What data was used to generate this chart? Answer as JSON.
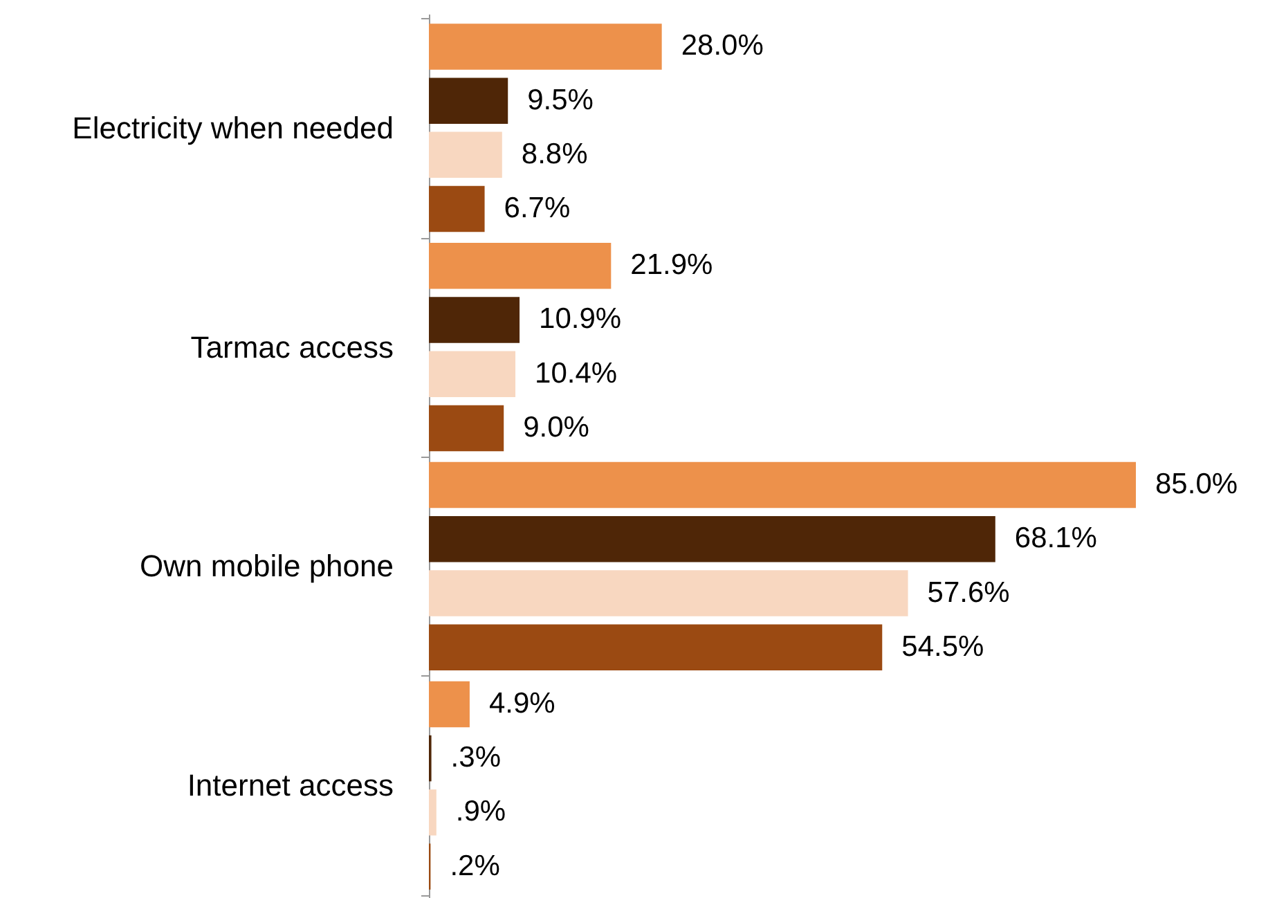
{
  "chart_data": {
    "type": "bar",
    "orientation": "horizontal",
    "categories": [
      "Electricity when needed",
      "Tarmac access",
      "Own mobile phone",
      "Internet access"
    ],
    "series": [
      {
        "color": "#ed914b",
        "values": [
          28.0,
          21.9,
          85.0,
          4.9
        ],
        "value_labels": [
          "28.0%",
          "21.9%",
          "85.0%",
          "4.9%"
        ]
      },
      {
        "color": "#4f2607",
        "values": [
          9.5,
          10.9,
          68.1,
          0.3
        ],
        "value_labels": [
          "9.5%",
          "10.9%",
          "68.1%",
          ".3%"
        ]
      },
      {
        "color": "#f8d7c0",
        "values": [
          8.8,
          10.4,
          57.6,
          0.9
        ],
        "value_labels": [
          "8.8%",
          "10.4%",
          "57.6%",
          ".9%"
        ]
      },
      {
        "color": "#9b4a12",
        "values": [
          6.7,
          9.0,
          54.5,
          0.2
        ],
        "value_labels": [
          "6.7%",
          "9.0%",
          "54.5%",
          ".2%"
        ]
      }
    ]
  }
}
